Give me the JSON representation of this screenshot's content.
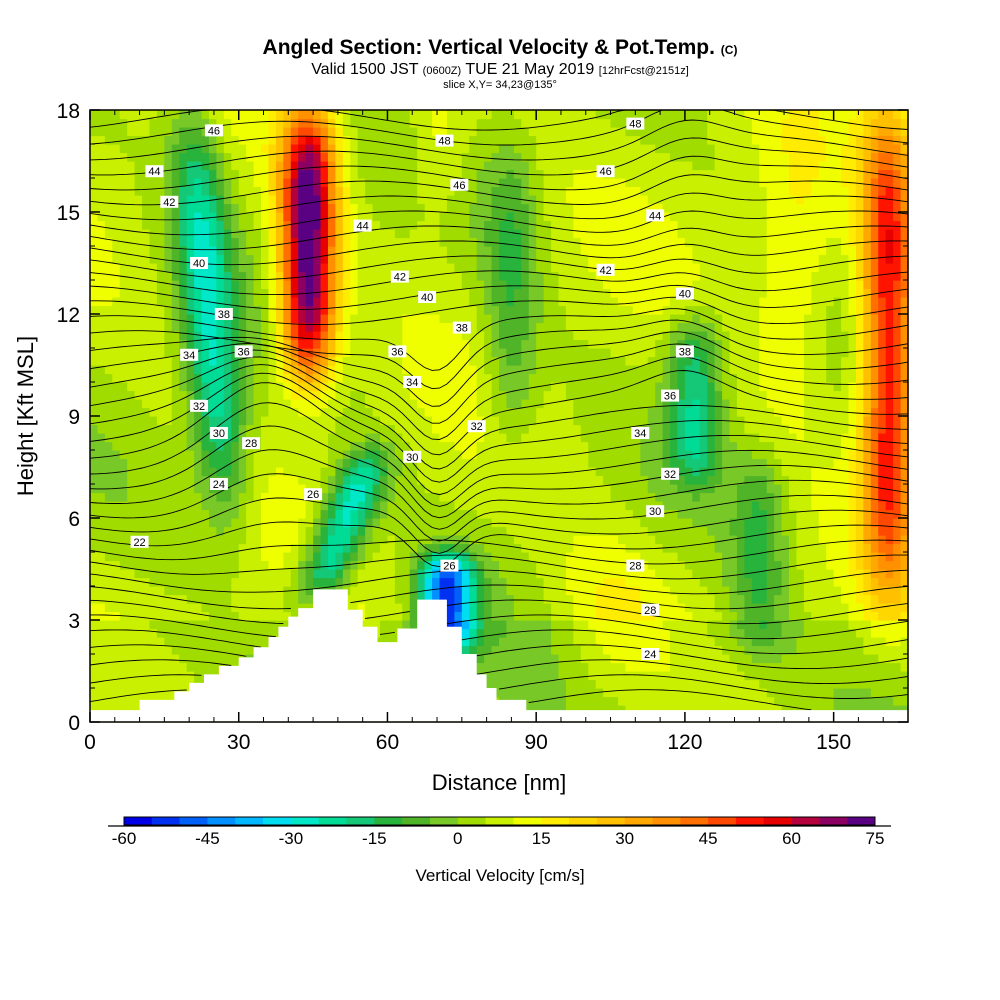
{
  "header": {
    "title": "Angled Section: Vertical Velocity & Pot.Temp.",
    "title_mark": "(C)",
    "valid_prefix": "Valid 1500 JST",
    "valid_zulu": "(0600Z)",
    "valid_date": "TUE 21 May 2019",
    "forecast_tag": "[12hrFcst@2151z]",
    "slice": "slice X,Y= 34,23@135°"
  },
  "chart_data": {
    "type": "heatmap",
    "xlabel": "Distance [nm]",
    "ylabel": "Height [Kft MSL]",
    "xlim": [
      0,
      165
    ],
    "ylim": [
      0,
      18
    ],
    "x_ticks": [
      0,
      30,
      60,
      90,
      120,
      150
    ],
    "y_ticks": [
      0,
      3,
      6,
      9,
      12,
      15,
      18
    ],
    "field": "Vertical Velocity",
    "colorbar": {
      "title": "Vertical Velocity [cm/s]",
      "ticks": [
        -60,
        -45,
        -30,
        -15,
        0,
        15,
        30,
        45,
        60,
        75
      ],
      "min": -60,
      "max": 75,
      "step": 5
    },
    "vertical_velocity_features": [
      {
        "x_center": 24,
        "y_range": [
          6,
          18
        ],
        "peak": -30,
        "sign": "down"
      },
      {
        "x_center": 44,
        "y_range": [
          10,
          18
        ],
        "peak": 70,
        "sign": "up"
      },
      {
        "x_center": 51,
        "y_range": [
          3.5,
          8
        ],
        "peak": -35,
        "sign": "down"
      },
      {
        "x_center": 72,
        "y_range": [
          2,
          5
        ],
        "peak": -55,
        "sign": "down"
      },
      {
        "x_center": 85,
        "y_range": [
          8,
          17
        ],
        "peak": -15,
        "sign": "down"
      },
      {
        "x_center": 122,
        "y_range": [
          7,
          12
        ],
        "peak": -25,
        "sign": "down"
      },
      {
        "x_center": 135,
        "y_range": [
          2,
          8
        ],
        "peak": -15,
        "sign": "down"
      },
      {
        "x_center": 161,
        "y_range": [
          4,
          18
        ],
        "peak": 50,
        "sign": "up"
      }
    ],
    "terrain_kft": [
      [
        0,
        0.35
      ],
      [
        10,
        0.35
      ],
      [
        10,
        0.65
      ],
      [
        17,
        0.65
      ],
      [
        17,
        0.9
      ],
      [
        20,
        0.9
      ],
      [
        20,
        1.15
      ],
      [
        23,
        1.15
      ],
      [
        23,
        1.4
      ],
      [
        26,
        1.4
      ],
      [
        26,
        1.65
      ],
      [
        30,
        1.65
      ],
      [
        30,
        1.9
      ],
      [
        33,
        1.9
      ],
      [
        33,
        2.2
      ],
      [
        36,
        2.2
      ],
      [
        36,
        2.5
      ],
      [
        38,
        2.5
      ],
      [
        38,
        2.8
      ],
      [
        40,
        2.8
      ],
      [
        40,
        3.1
      ],
      [
        42,
        3.1
      ],
      [
        42,
        3.35
      ],
      [
        45,
        3.35
      ],
      [
        45,
        3.9
      ],
      [
        52,
        3.9
      ],
      [
        52,
        3.3
      ],
      [
        55,
        3.3
      ],
      [
        55,
        2.8
      ],
      [
        58,
        2.8
      ],
      [
        58,
        2.35
      ],
      [
        62,
        2.35
      ],
      [
        62,
        2.75
      ],
      [
        66,
        2.75
      ],
      [
        66,
        3.6
      ],
      [
        72,
        3.6
      ],
      [
        72,
        2.8
      ],
      [
        75,
        2.8
      ],
      [
        75,
        2.0
      ],
      [
        78,
        2.0
      ],
      [
        78,
        1.4
      ],
      [
        80,
        1.4
      ],
      [
        80,
        1.0
      ],
      [
        82,
        1.0
      ],
      [
        82,
        0.65
      ],
      [
        88,
        0.65
      ],
      [
        88,
        0.35
      ],
      [
        165,
        0.35
      ]
    ],
    "potential_temperature_labels": [
      {
        "text": "46",
        "x": 25,
        "y": 17.4
      },
      {
        "text": "44",
        "x": 13,
        "y": 16.2
      },
      {
        "text": "42",
        "x": 16,
        "y": 15.3
      },
      {
        "text": "40",
        "x": 22,
        "y": 13.5
      },
      {
        "text": "38",
        "x": 27,
        "y": 12.0
      },
      {
        "text": "34",
        "x": 20,
        "y": 10.8
      },
      {
        "text": "36",
        "x": 31,
        "y": 10.9
      },
      {
        "text": "32",
        "x": 22,
        "y": 9.3
      },
      {
        "text": "30",
        "x": 26,
        "y": 8.5
      },
      {
        "text": "28",
        "x": 32.5,
        "y": 8.2
      },
      {
        "text": "24",
        "x": 26,
        "y": 7.0
      },
      {
        "text": "22",
        "x": 10,
        "y": 5.3
      },
      {
        "text": "26",
        "x": 45,
        "y": 6.7
      },
      {
        "text": "44",
        "x": 55,
        "y": 14.6
      },
      {
        "text": "42",
        "x": 62.5,
        "y": 13.1
      },
      {
        "text": "40",
        "x": 68,
        "y": 12.5
      },
      {
        "text": "38",
        "x": 75,
        "y": 11.6
      },
      {
        "text": "36",
        "x": 62,
        "y": 10.9
      },
      {
        "text": "34",
        "x": 65,
        "y": 10.0
      },
      {
        "text": "32",
        "x": 78,
        "y": 8.7
      },
      {
        "text": "30",
        "x": 65,
        "y": 7.8
      },
      {
        "text": "26",
        "x": 72.5,
        "y": 4.6
      },
      {
        "text": "48",
        "x": 71.5,
        "y": 17.1
      },
      {
        "text": "46",
        "x": 74.5,
        "y": 15.8
      },
      {
        "text": "48",
        "x": 110,
        "y": 17.6
      },
      {
        "text": "46",
        "x": 104,
        "y": 16.2
      },
      {
        "text": "44",
        "x": 114,
        "y": 14.9
      },
      {
        "text": "42",
        "x": 104,
        "y": 13.3
      },
      {
        "text": "40",
        "x": 120,
        "y": 12.6
      },
      {
        "text": "38",
        "x": 120,
        "y": 10.9
      },
      {
        "text": "36",
        "x": 117,
        "y": 9.6
      },
      {
        "text": "34",
        "x": 111,
        "y": 8.5
      },
      {
        "text": "32",
        "x": 117,
        "y": 7.3
      },
      {
        "text": "30",
        "x": 114,
        "y": 6.2
      },
      {
        "text": "28",
        "x": 110,
        "y": 4.6
      },
      {
        "text": "28",
        "x": 113,
        "y": 3.3
      },
      {
        "text": "24",
        "x": 113,
        "y": 2.0
      }
    ]
  }
}
